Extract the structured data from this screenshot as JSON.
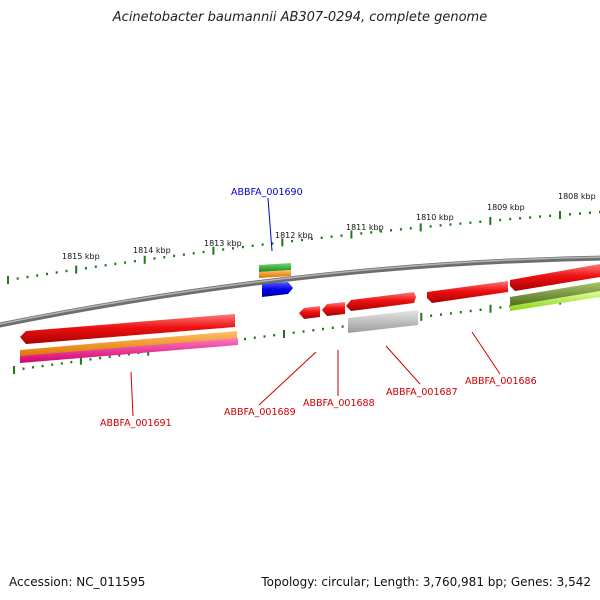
{
  "title": "Acinetobacter baumannii AB307-0294, complete genome",
  "footer": {
    "accession": "Accession: NC_011595",
    "summary": "Topology: circular; Length: 3,760,981 bp; Genes: 3,542"
  },
  "scale_labels": [
    "1815 kbp",
    "1814 kbp",
    "1813 kbp",
    "1812 kbp",
    "1811 kbp",
    "1810 kbp",
    "1809 kbp",
    "1808 kbp"
  ],
  "gene_labels": [
    {
      "id": "ABBFA_001690",
      "color": "#0000cc"
    },
    {
      "id": "ABBFA_001691",
      "color": "#cc0000"
    },
    {
      "id": "ABBFA_001689",
      "color": "#cc0000"
    },
    {
      "id": "ABBFA_001688",
      "color": "#cc0000"
    },
    {
      "id": "ABBFA_001687",
      "color": "#cc0000"
    },
    {
      "id": "ABBFA_001686",
      "color": "#cc0000"
    }
  ],
  "colors": {
    "backbone": "#808080",
    "ticks": "#1a7a1a",
    "gene_red": "#ee1111",
    "gene_blue": "#0000ee",
    "gene_green": "#22aa22",
    "gene_orange": "#ff8c00",
    "gene_magenta": "#ff1493",
    "gene_gray": "#b8b8b8",
    "gene_olive": "#6b8e23",
    "gene_lime": "#adff2f"
  }
}
